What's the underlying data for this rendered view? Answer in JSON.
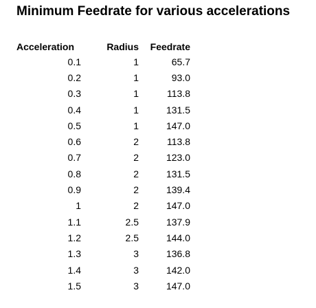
{
  "title": "Minimum Feedrate for various accelerations",
  "headers": {
    "acceleration": "Acceleration",
    "radius": "Radius",
    "feedrate": "Feedrate"
  },
  "rows": [
    {
      "acceleration": "0.1",
      "radius": "1",
      "feedrate": "65.7"
    },
    {
      "acceleration": "0.2",
      "radius": "1",
      "feedrate": "93.0"
    },
    {
      "acceleration": "0.3",
      "radius": "1",
      "feedrate": "113.8"
    },
    {
      "acceleration": "0.4",
      "radius": "1",
      "feedrate": "131.5"
    },
    {
      "acceleration": "0.5",
      "radius": "1",
      "feedrate": "147.0"
    },
    {
      "acceleration": "0.6",
      "radius": "2",
      "feedrate": "113.8"
    },
    {
      "acceleration": "0.7",
      "radius": "2",
      "feedrate": "123.0"
    },
    {
      "acceleration": "0.8",
      "radius": "2",
      "feedrate": "131.5"
    },
    {
      "acceleration": "0.9",
      "radius": "2",
      "feedrate": "139.4"
    },
    {
      "acceleration": "1",
      "radius": "2",
      "feedrate": "147.0"
    },
    {
      "acceleration": "1.1",
      "radius": "2.5",
      "feedrate": "137.9"
    },
    {
      "acceleration": "1.2",
      "radius": "2.5",
      "feedrate": "144.0"
    },
    {
      "acceleration": "1.3",
      "radius": "3",
      "feedrate": "136.8"
    },
    {
      "acceleration": "1.4",
      "radius": "3",
      "feedrate": "142.0"
    },
    {
      "acceleration": "1.5",
      "radius": "3",
      "feedrate": "147.0"
    }
  ]
}
